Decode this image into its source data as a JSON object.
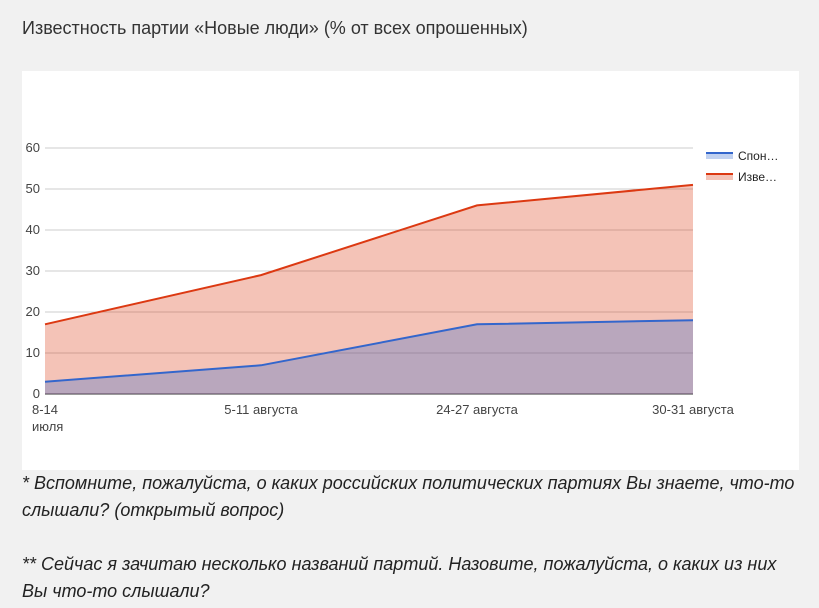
{
  "page": {
    "title": "Известность партии «Новые люди» (% от всех опрошенных)",
    "note1": "* Вспомните, пожалуйста, о каких российских политических партиях Вы знаете, что-то слышали? (открытый вопрос)",
    "note2": "** Сейчас я зачитаю несколько названий партий. Назовите, пожалуйста, о каких из них Вы что-то слышали?"
  },
  "chart_data": {
    "type": "area",
    "categories": [
      [
        "8-14",
        "июля"
      ],
      [
        "5-11 августа"
      ],
      [
        "24-27 августа"
      ],
      [
        "30-31 августа"
      ]
    ],
    "series": [
      {
        "name": "Спон…",
        "values": [
          3,
          7,
          17,
          18
        ],
        "color": "#3366cc"
      },
      {
        "name": "Изве…",
        "values": [
          17,
          29,
          46,
          51
        ],
        "color": "#dc3912"
      }
    ],
    "ylim": [
      0,
      60
    ],
    "yticks": [
      0,
      10,
      20,
      30,
      40,
      50,
      60
    ],
    "grid": true,
    "legend": "right"
  }
}
